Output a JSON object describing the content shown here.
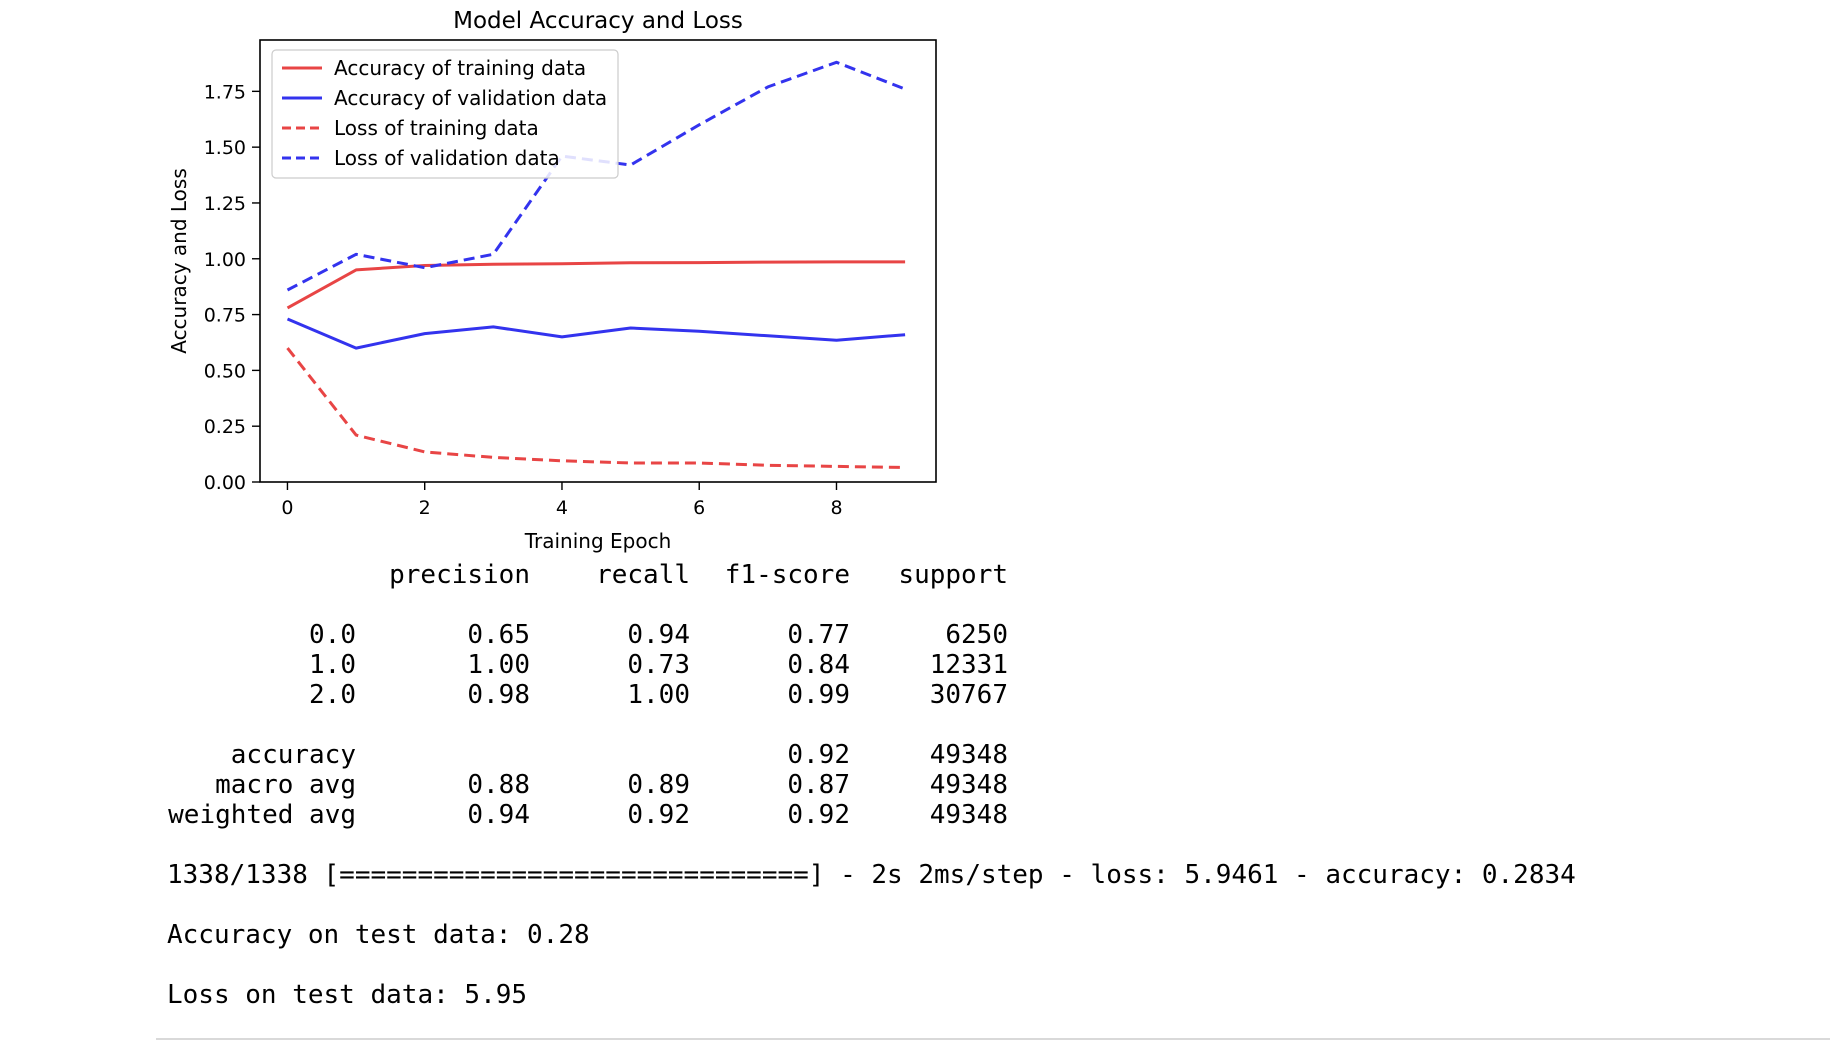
{
  "chart_data": {
    "type": "line",
    "title": "Model Accuracy and Loss",
    "xlabel": "Training Epoch",
    "ylabel": "Accuracy and Loss",
    "xlim": [
      -0.4,
      9.45
    ],
    "ylim": [
      0,
      1.98
    ],
    "xticks": [
      0,
      2,
      4,
      6,
      8
    ],
    "yticks": [
      "0.00",
      "0.25",
      "0.50",
      "0.75",
      "1.00",
      "1.25",
      "1.50",
      "1.75"
    ],
    "legend_position": "top-left",
    "grid": false,
    "x": [
      0,
      1,
      2,
      3,
      4,
      5,
      6,
      7,
      8,
      9
    ],
    "series": [
      {
        "name": "Accuracy of training data",
        "color": "#e84545",
        "dash": "solid",
        "values": [
          0.78,
          0.95,
          0.97,
          0.975,
          0.978,
          0.982,
          0.983,
          0.985,
          0.986,
          0.986
        ]
      },
      {
        "name": "Accuracy of validation data",
        "color": "#3333ee",
        "dash": "solid",
        "values": [
          0.73,
          0.6,
          0.665,
          0.695,
          0.65,
          0.69,
          0.675,
          0.655,
          0.635,
          0.66
        ]
      },
      {
        "name": "Loss of training data",
        "color": "#e84545",
        "dash": "dashed",
        "values": [
          0.6,
          0.21,
          0.135,
          0.11,
          0.095,
          0.085,
          0.085,
          0.075,
          0.07,
          0.065
        ]
      },
      {
        "name": "Loss of validation data",
        "color": "#3333ee",
        "dash": "dashed",
        "values": [
          0.86,
          1.02,
          0.96,
          1.02,
          1.46,
          1.42,
          1.6,
          1.77,
          1.88,
          1.76
        ]
      }
    ]
  },
  "report": {
    "headers": [
      "precision",
      "recall",
      "f1-score",
      "support"
    ],
    "class_rows": [
      {
        "label": "0.0",
        "precision": "0.65",
        "recall": "0.94",
        "f1": "0.77",
        "support": "6250"
      },
      {
        "label": "1.0",
        "precision": "1.00",
        "recall": "0.73",
        "f1": "0.84",
        "support": "12331"
      },
      {
        "label": "2.0",
        "precision": "0.98",
        "recall": "1.00",
        "f1": "0.99",
        "support": "30767"
      }
    ],
    "summary_rows": [
      {
        "label": "accuracy",
        "precision": "",
        "recall": "",
        "f1": "0.92",
        "support": "49348"
      },
      {
        "label": "macro avg",
        "precision": "0.88",
        "recall": "0.89",
        "f1": "0.87",
        "support": "49348"
      },
      {
        "label": "weighted avg",
        "precision": "0.94",
        "recall": "0.92",
        "f1": "0.92",
        "support": "49348"
      }
    ]
  },
  "output": {
    "progress_line": "1338/1338 [==============================] - 2s 2ms/step - loss: 5.9461 - accuracy: 0.2834",
    "accuracy_line": "Accuracy on test data: 0.28",
    "loss_line": "Loss on test data: 5.95"
  }
}
